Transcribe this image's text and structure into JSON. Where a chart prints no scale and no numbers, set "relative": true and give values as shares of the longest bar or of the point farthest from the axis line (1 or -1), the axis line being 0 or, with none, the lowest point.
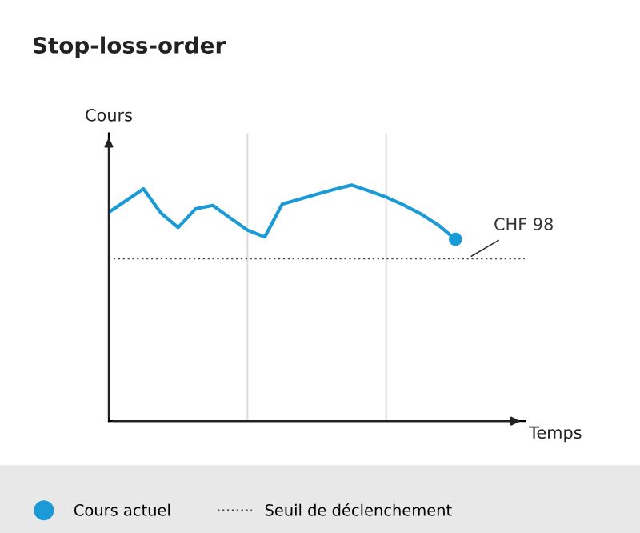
{
  "chart_data": {
    "type": "line",
    "title": "Stop-loss-order",
    "xlabel": "Temps",
    "ylabel": "Cours",
    "relative": true,
    "legend": "bottom",
    "line_style": "solid",
    "categories": [
      null,
      null,
      null,
      null,
      null,
      null,
      null,
      null,
      null,
      null,
      null,
      null,
      null,
      null,
      null,
      null,
      null,
      null,
      null,
      null,
      null
    ],
    "series": [
      {
        "name": "Cours actuel",
        "color": "#1a9ad6",
        "values": [
          0.885,
          0.934,
          0.984,
          0.882,
          0.82,
          0.899,
          0.914,
          0.861,
          0.809,
          0.78,
          0.919,
          0.94,
          0.961,
          0.982,
          1,
          0.976,
          0.949,
          0.916,
          0.878,
          0.831,
          0.77
        ]
      }
    ],
    "ref_lines": [
      {
        "axis": "y",
        "value": 0.689,
        "label": "Seuil de déclenchement",
        "color": "#444444",
        "line_style": "dotted"
      }
    ],
    "annotations": [
      {
        "text": "CHF 98",
        "y": 0.689
      }
    ]
  }
}
